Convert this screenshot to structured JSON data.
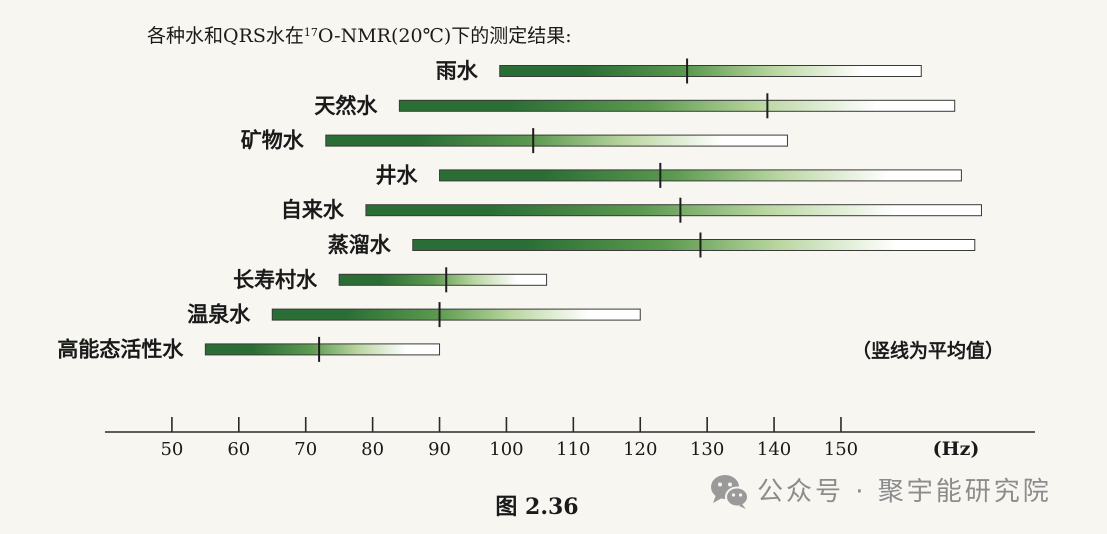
{
  "chart_data": {
    "type": "bar",
    "orientation": "horizontal",
    "title": {
      "before": "各种水和QRS水在",
      "sup": "17",
      "after": "O-NMR(20℃)下的测定结果:"
    },
    "xlabel": "(Hz)",
    "x_ticks": [
      50,
      60,
      70,
      80,
      90,
      100,
      110,
      120,
      130,
      140,
      150
    ],
    "xlim": [
      40,
      179
    ],
    "grid": false,
    "annotation": "（竖线为平均值）",
    "bars": [
      {
        "label": "雨水",
        "start": 99,
        "end": 162,
        "mean": 127
      },
      {
        "label": "天然水",
        "start": 84,
        "end": 167,
        "mean": 139
      },
      {
        "label": "矿物水",
        "start": 73,
        "end": 142,
        "mean": 104
      },
      {
        "label": "井水",
        "start": 90,
        "end": 168,
        "mean": 123
      },
      {
        "label": "自来水",
        "start": 79,
        "end": 171,
        "mean": 126
      },
      {
        "label": "蒸溜水",
        "start": 86,
        "end": 170,
        "mean": 129
      },
      {
        "label": "长寿村水",
        "start": 75,
        "end": 106,
        "mean": 91
      },
      {
        "label": "温泉水",
        "start": 65,
        "end": 120,
        "mean": 90
      },
      {
        "label": "高能态活性水",
        "start": 55,
        "end": 90,
        "mean": 72
      }
    ]
  },
  "figure_caption": "图 2.36",
  "watermark": {
    "icon": "wechat-icon",
    "text": "公众号 · 聚宇能研究院"
  },
  "colors": {
    "background": "#f7f6f1",
    "bar_dark": "#2b6e35",
    "bar_mid": "#5c9a50",
    "bar_light": "#b9d6a0",
    "bar_end": "#ffffff",
    "bar_border": "#3a3a3a",
    "mean_line": "#1e1e1e",
    "axis": "#2a2a2a",
    "watermark": "#9a9a9a"
  }
}
